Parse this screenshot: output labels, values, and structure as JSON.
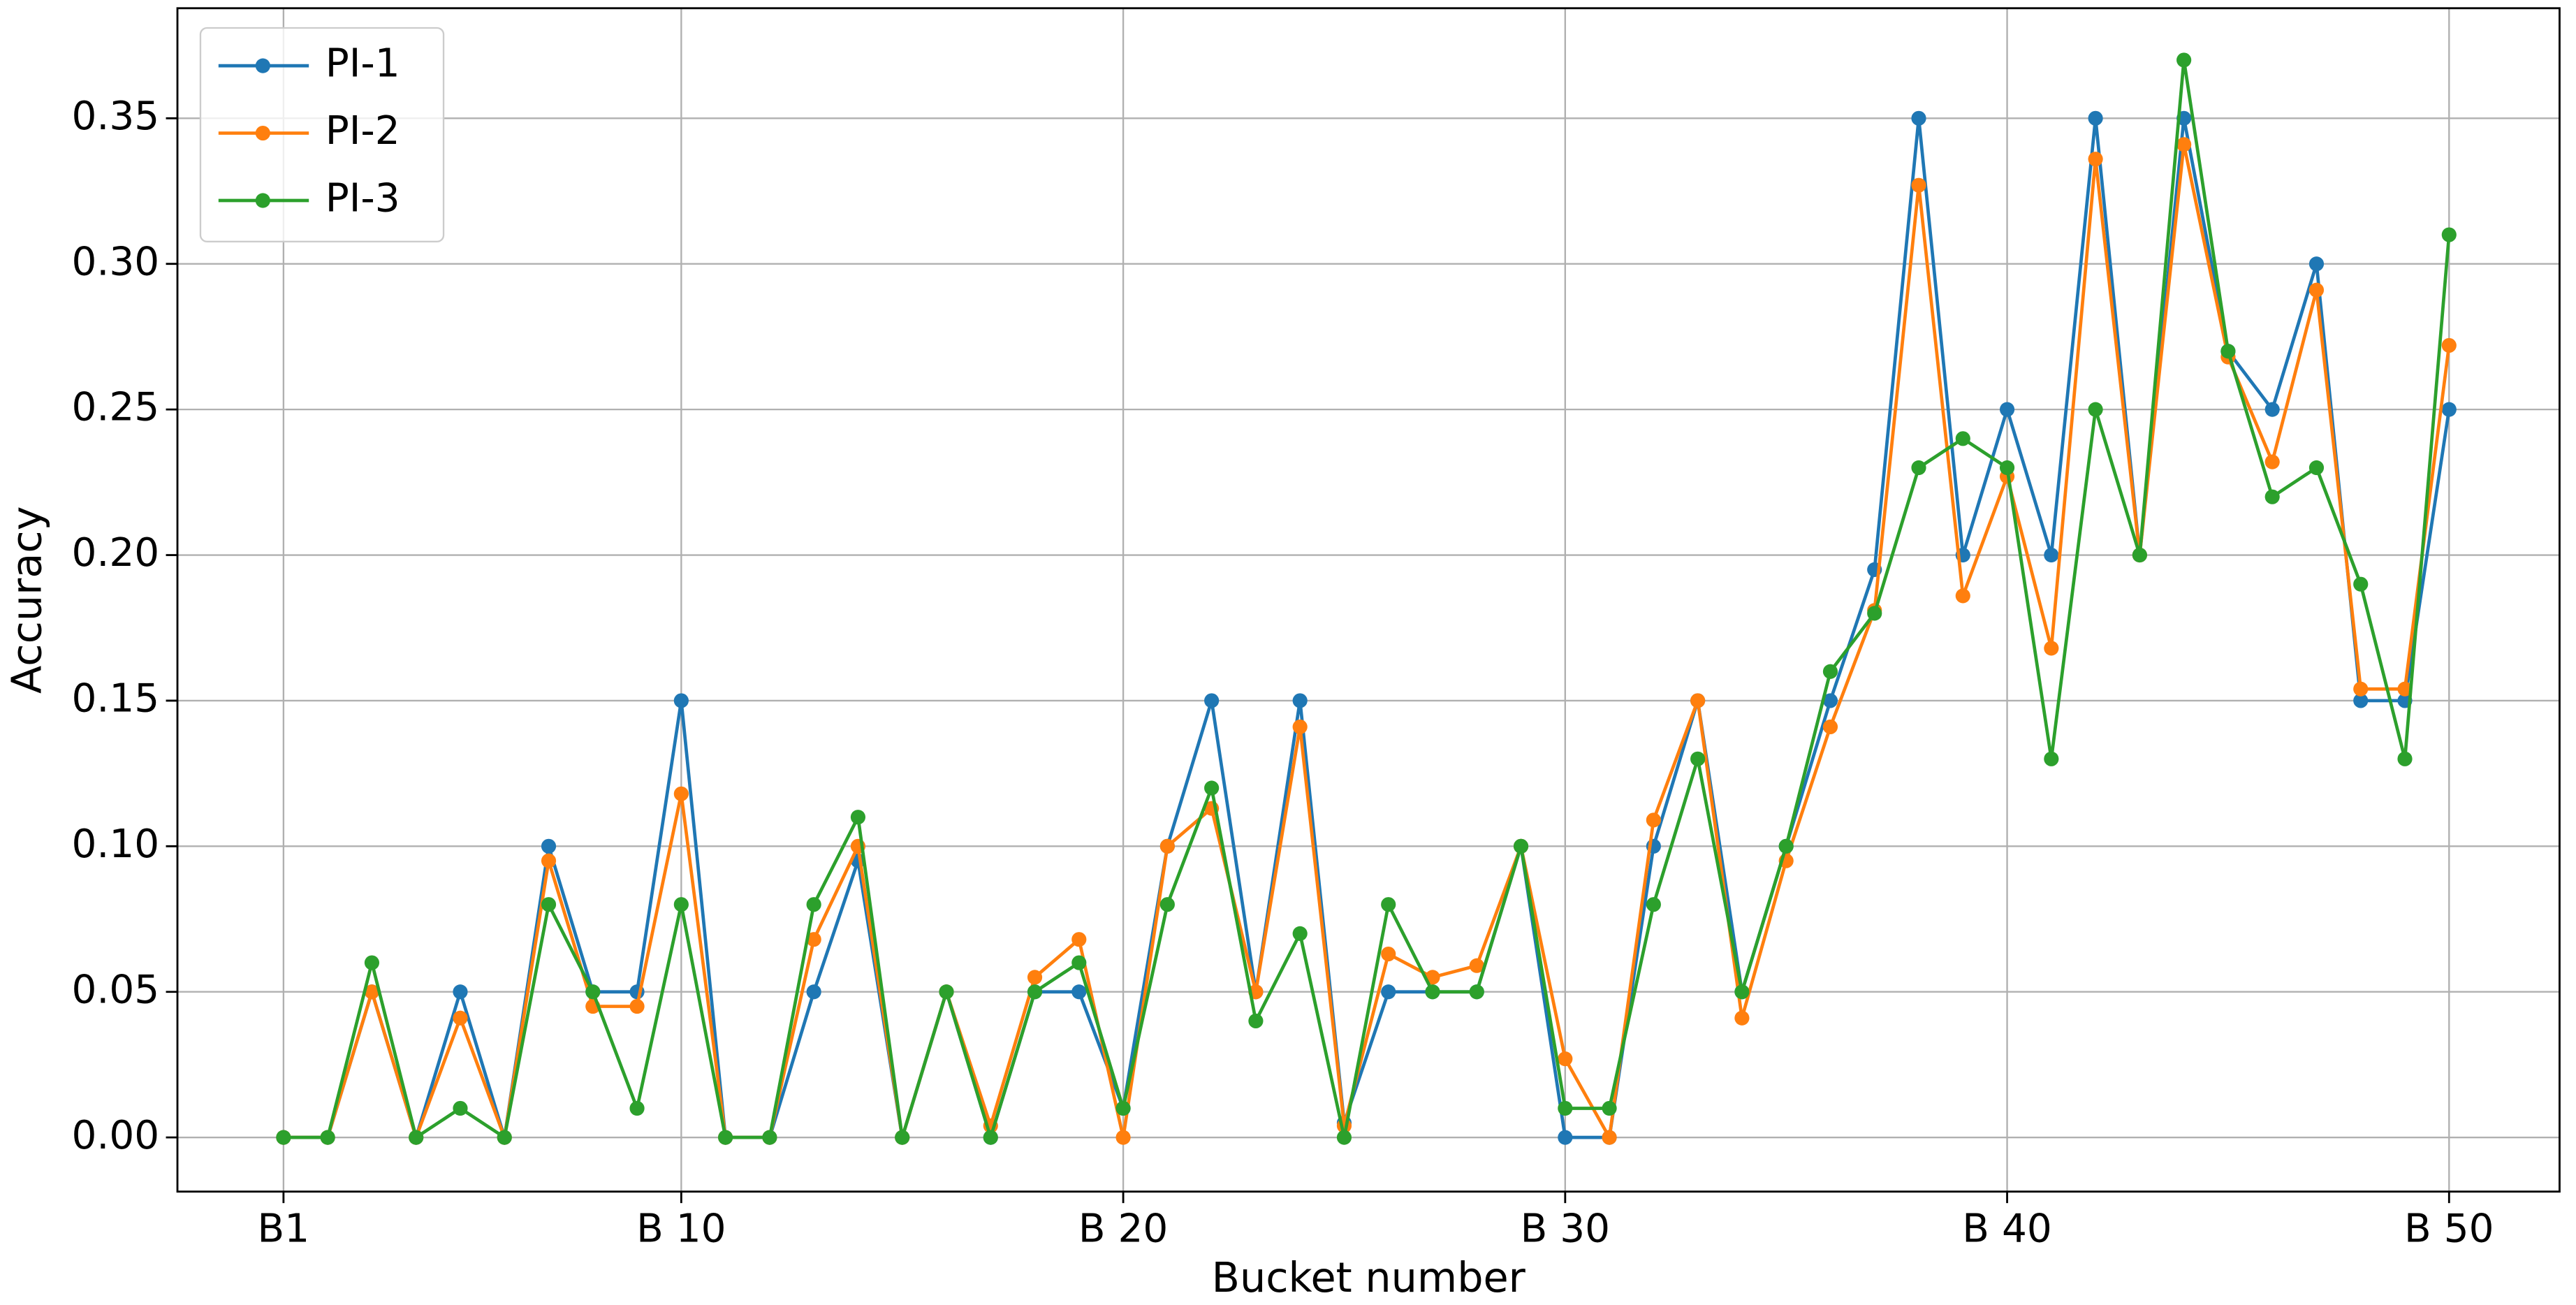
{
  "chart_data": {
    "type": "line",
    "xlabel": "Bucket number",
    "ylabel": "Accuracy",
    "x": [
      1,
      2,
      3,
      4,
      5,
      6,
      7,
      8,
      9,
      10,
      11,
      12,
      13,
      14,
      15,
      16,
      17,
      18,
      19,
      20,
      21,
      22,
      23,
      24,
      25,
      26,
      27,
      28,
      29,
      30,
      31,
      32,
      33,
      34,
      35,
      36,
      37,
      38,
      39,
      40,
      41,
      42,
      43,
      44,
      45,
      46,
      47,
      48,
      49,
      50
    ],
    "series": [
      {
        "name": "PI-1",
        "color": "#1f77b4",
        "values": [
          0,
          0,
          0.05,
          0,
          0.05,
          0,
          0.1,
          0.05,
          0.05,
          0.15,
          0,
          0,
          0.05,
          0.095,
          0,
          0.05,
          0,
          0.05,
          0.05,
          0.01,
          0.1,
          0.15,
          0.05,
          0.15,
          0.005,
          0.05,
          0.05,
          0.05,
          0.1,
          0,
          0,
          0.1,
          0.15,
          0.05,
          0.1,
          0.15,
          0.195,
          0.35,
          0.2,
          0.25,
          0.2,
          0.35,
          0.2,
          0.35,
          0.27,
          0.25,
          0.3,
          0.15,
          0.15,
          0.25
        ]
      },
      {
        "name": "PI-2",
        "color": "#ff7f0e",
        "values": [
          0,
          0,
          0.05,
          0,
          0.041,
          0,
          0.095,
          0.045,
          0.045,
          0.118,
          0,
          0,
          0.068,
          0.1,
          0,
          0.05,
          0.004,
          0.055,
          0.068,
          0,
          0.1,
          0.113,
          0.05,
          0.141,
          0.004,
          0.063,
          0.055,
          0.059,
          0.1,
          0.027,
          0,
          0.109,
          0.15,
          0.041,
          0.095,
          0.141,
          0.181,
          0.327,
          0.186,
          0.227,
          0.168,
          0.336,
          0.2,
          0.341,
          0.268,
          0.232,
          0.291,
          0.154,
          0.154,
          0.272
        ]
      },
      {
        "name": "PI-3",
        "color": "#2ca02c",
        "values": [
          0,
          0,
          0.06,
          0,
          0.01,
          0,
          0.08,
          0.05,
          0.01,
          0.08,
          0,
          0,
          0.08,
          0.11,
          0,
          0.05,
          0,
          0.05,
          0.06,
          0.01,
          0.08,
          0.12,
          0.04,
          0.07,
          0,
          0.08,
          0.05,
          0.05,
          0.1,
          0.01,
          0.01,
          0.08,
          0.13,
          0.05,
          0.1,
          0.16,
          0.18,
          0.23,
          0.24,
          0.23,
          0.13,
          0.25,
          0.2,
          0.37,
          0.27,
          0.22,
          0.23,
          0.19,
          0.13,
          0.31
        ]
      }
    ],
    "xlim": [
      -1.4,
      52.5
    ],
    "xticks": [
      {
        "value": 1,
        "label": "B1"
      },
      {
        "value": 10,
        "label": "B 10"
      },
      {
        "value": 20,
        "label": "B 20"
      },
      {
        "value": 30,
        "label": "B 30"
      },
      {
        "value": 40,
        "label": "B 40"
      },
      {
        "value": 50,
        "label": "B 50"
      }
    ],
    "ylim": [
      -0.0186,
      0.3878
    ],
    "yticks": [
      {
        "value": 0,
        "label": "0.00"
      },
      {
        "value": 0.05,
        "label": "0.05"
      },
      {
        "value": 0.1,
        "label": "0.10"
      },
      {
        "value": 0.15,
        "label": "0.15"
      },
      {
        "value": 0.2,
        "label": "0.20"
      },
      {
        "value": 0.25,
        "label": "0.25"
      },
      {
        "value": 0.3,
        "label": "0.30"
      },
      {
        "value": 0.35,
        "label": "0.35"
      }
    ],
    "grid": true,
    "legend": "upper-left"
  }
}
